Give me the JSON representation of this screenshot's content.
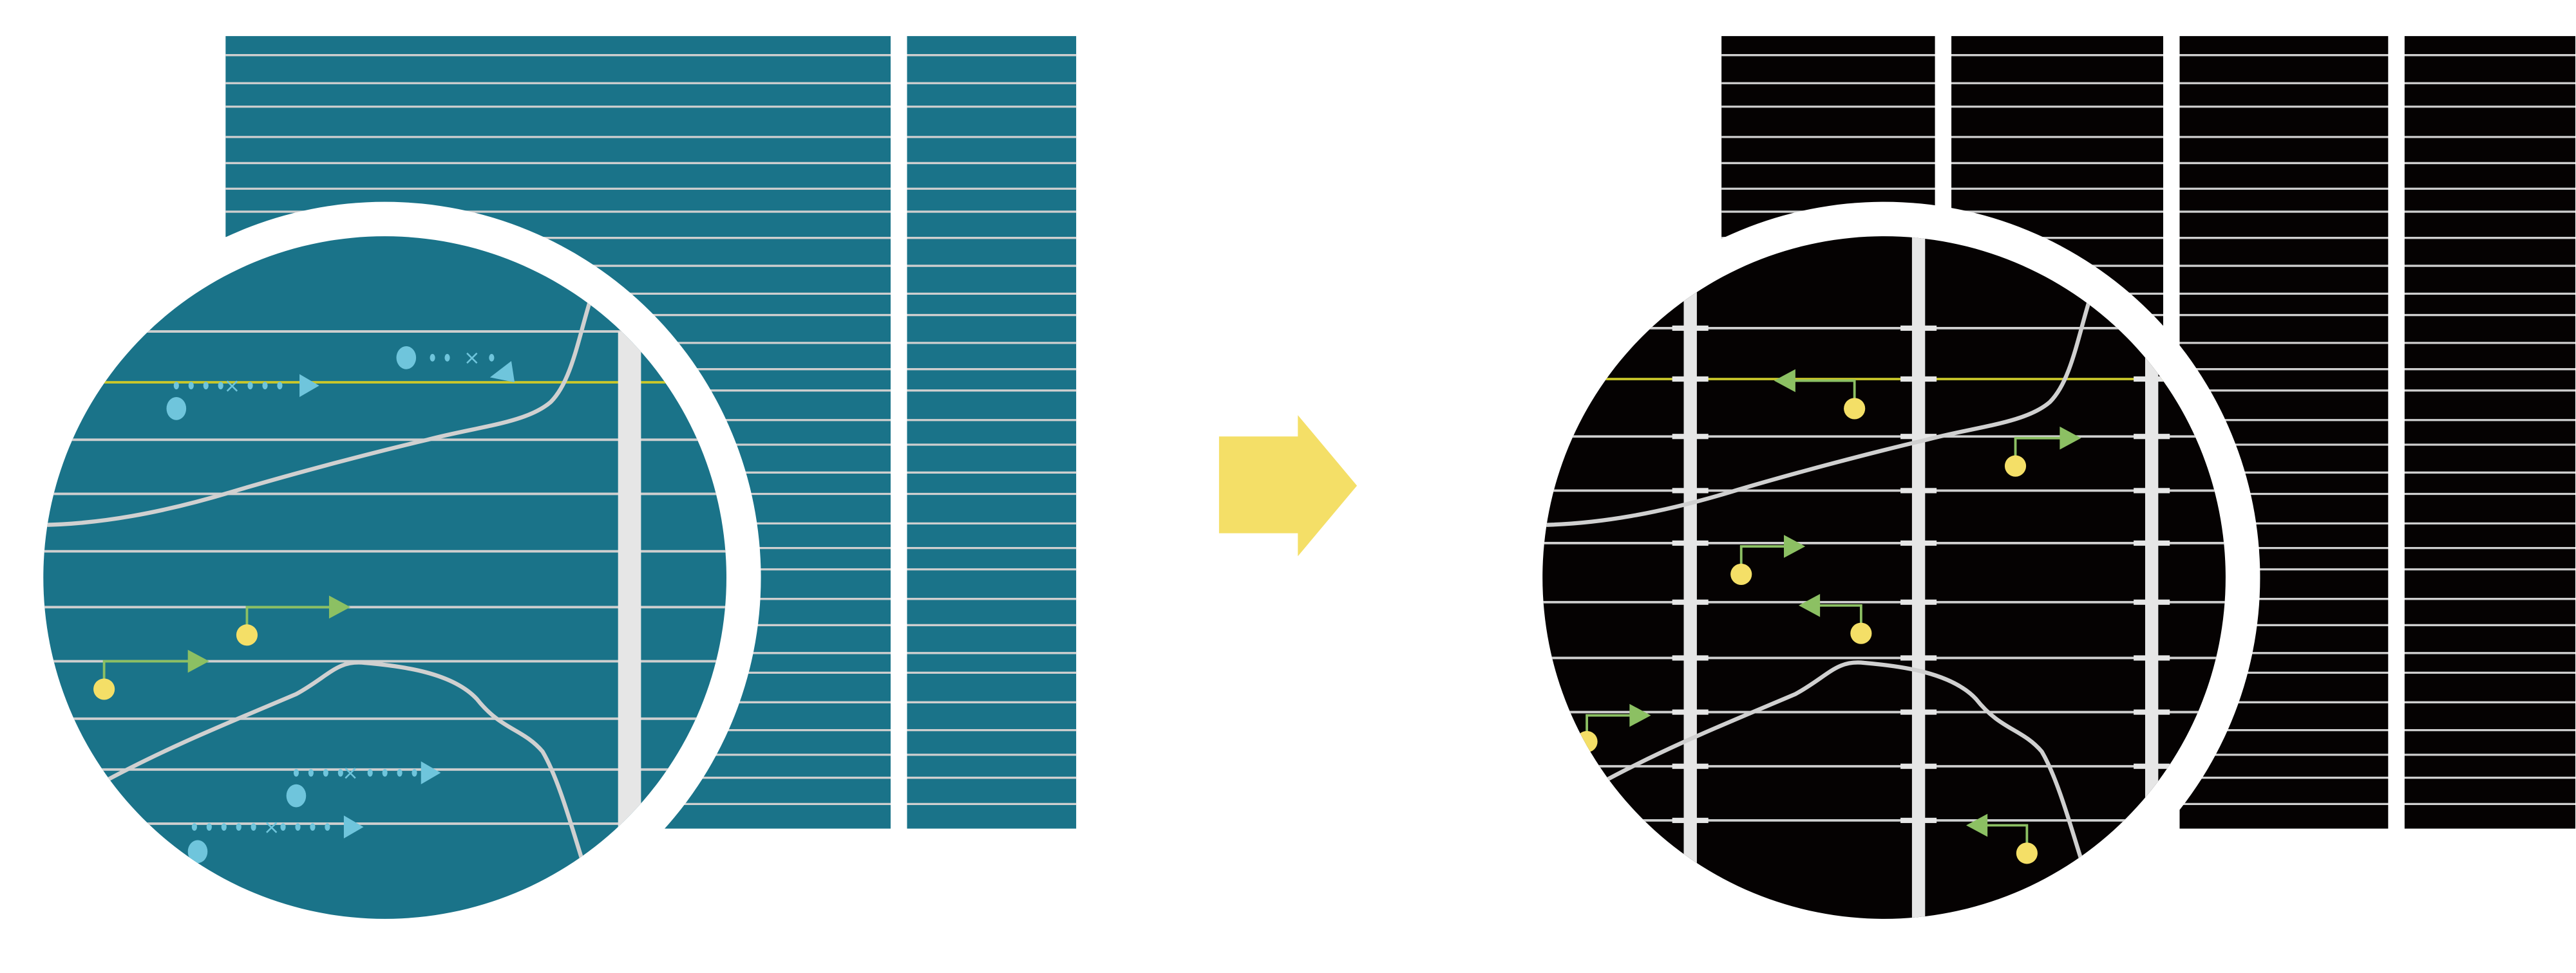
{
  "colors": {
    "before_panel": "#1a7389",
    "after_panel": "#050202",
    "grid_line": "#cfcfcf",
    "column_bar": "#e6e6e6",
    "highlight_line": "#c9c72a",
    "transition_arrow": "#f4df67",
    "particle_dot": "#f4df67",
    "particle_arrow": "#8cc063",
    "diffusion_marker": "#6fc5dc",
    "curve": "#d0d0d0",
    "lens_ring": "#ffffff"
  },
  "panels": [
    {
      "id": "before",
      "label": "",
      "columns": 2,
      "magnifier": true
    },
    {
      "id": "after",
      "label": "",
      "columns": 4,
      "magnifier": true
    }
  ],
  "icons": {
    "transition": "right-arrow-icon",
    "magnifier": "magnifier-lens-icon"
  }
}
